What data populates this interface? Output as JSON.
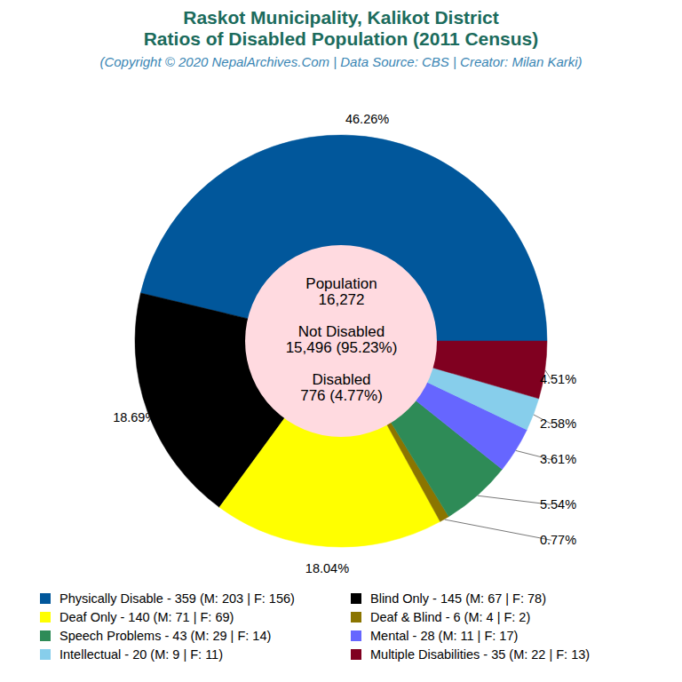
{
  "chart_data": {
    "type": "pie",
    "title": [
      "Raskot Municipality, Kalikot District",
      "Ratios of Disabled Population (2011 Census)"
    ],
    "subtitle": "(Copyright © 2020 NepalArchives.Com | Data Source: CBS | Creator: Milan Karki)",
    "categories": [
      "Physically Disable - 359 (M: 203 | F: 156)",
      "Blind Only - 145 (M: 67 | F: 78)",
      "Deaf Only - 140 (M: 71 | F: 69)",
      "Deaf & Blind - 6 (M: 4 | F: 2)",
      "Speech Problems - 43 (M: 29 | F: 14)",
      "Mental - 28 (M: 11 | F: 17)",
      "Intellectual - 20 (M: 9 | F: 11)",
      "Multiple Disabilities - 35 (M: 22 | F: 13)"
    ],
    "values": [
      46.26,
      18.69,
      18.04,
      0.77,
      5.54,
      3.61,
      2.58,
      4.51
    ],
    "value_labels": [
      "46.26%",
      "18.69%",
      "18.04%",
      "0.77%",
      "5.54%",
      "3.61%",
      "2.58%",
      "4.51%"
    ],
    "colors": [
      "#01579b",
      "#000000",
      "#ffff00",
      "#8b7500",
      "#2e8b57",
      "#6666ff",
      "#87ceeb",
      "#800020"
    ],
    "data_labels": true,
    "legend": "bottom",
    "center_text": [
      "Population",
      "16,272",
      "Not Disabled",
      "15,496 (95.23%)",
      "Disabled",
      "776 (4.77%)"
    ]
  }
}
